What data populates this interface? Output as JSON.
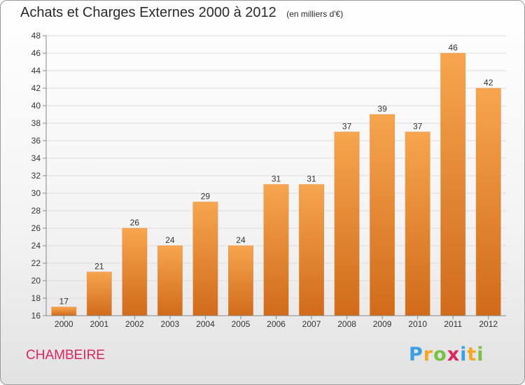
{
  "header": {
    "title": "Achats et Charges Externes 2000 à 2012",
    "unit": "(en milliers d'€)"
  },
  "commune": "CHAMBEIRE",
  "logo": {
    "letters": [
      "P",
      "r",
      "o",
      "x",
      "i",
      "t",
      "i"
    ],
    "colors": [
      "#3aa0e6",
      "#f5a623",
      "#7ac043",
      "#e0245e",
      "#3aa0e6",
      "#f5a623",
      "#7ac043"
    ]
  },
  "chart_data": {
    "type": "bar",
    "categories": [
      "2000",
      "2001",
      "2002",
      "2003",
      "2004",
      "2005",
      "2006",
      "2007",
      "2008",
      "2009",
      "2010",
      "2011",
      "2012"
    ],
    "values": [
      17,
      21,
      26,
      24,
      29,
      24,
      31,
      31,
      37,
      39,
      37,
      46,
      42
    ],
    "data_labels": [
      "17",
      "21",
      "26",
      "24",
      "29",
      "24",
      "31",
      "31",
      "37",
      "39",
      "37",
      "46",
      "42"
    ],
    "yticks": [
      "16",
      "18",
      "20",
      "22",
      "24",
      "26",
      "28",
      "30",
      "32",
      "34",
      "36",
      "38",
      "40",
      "42",
      "44",
      "46",
      "48"
    ],
    "ylim": [
      16,
      48
    ],
    "grid": true,
    "bar_color_top": "#f7a54f",
    "bar_color_bottom": "#d06b1a"
  }
}
